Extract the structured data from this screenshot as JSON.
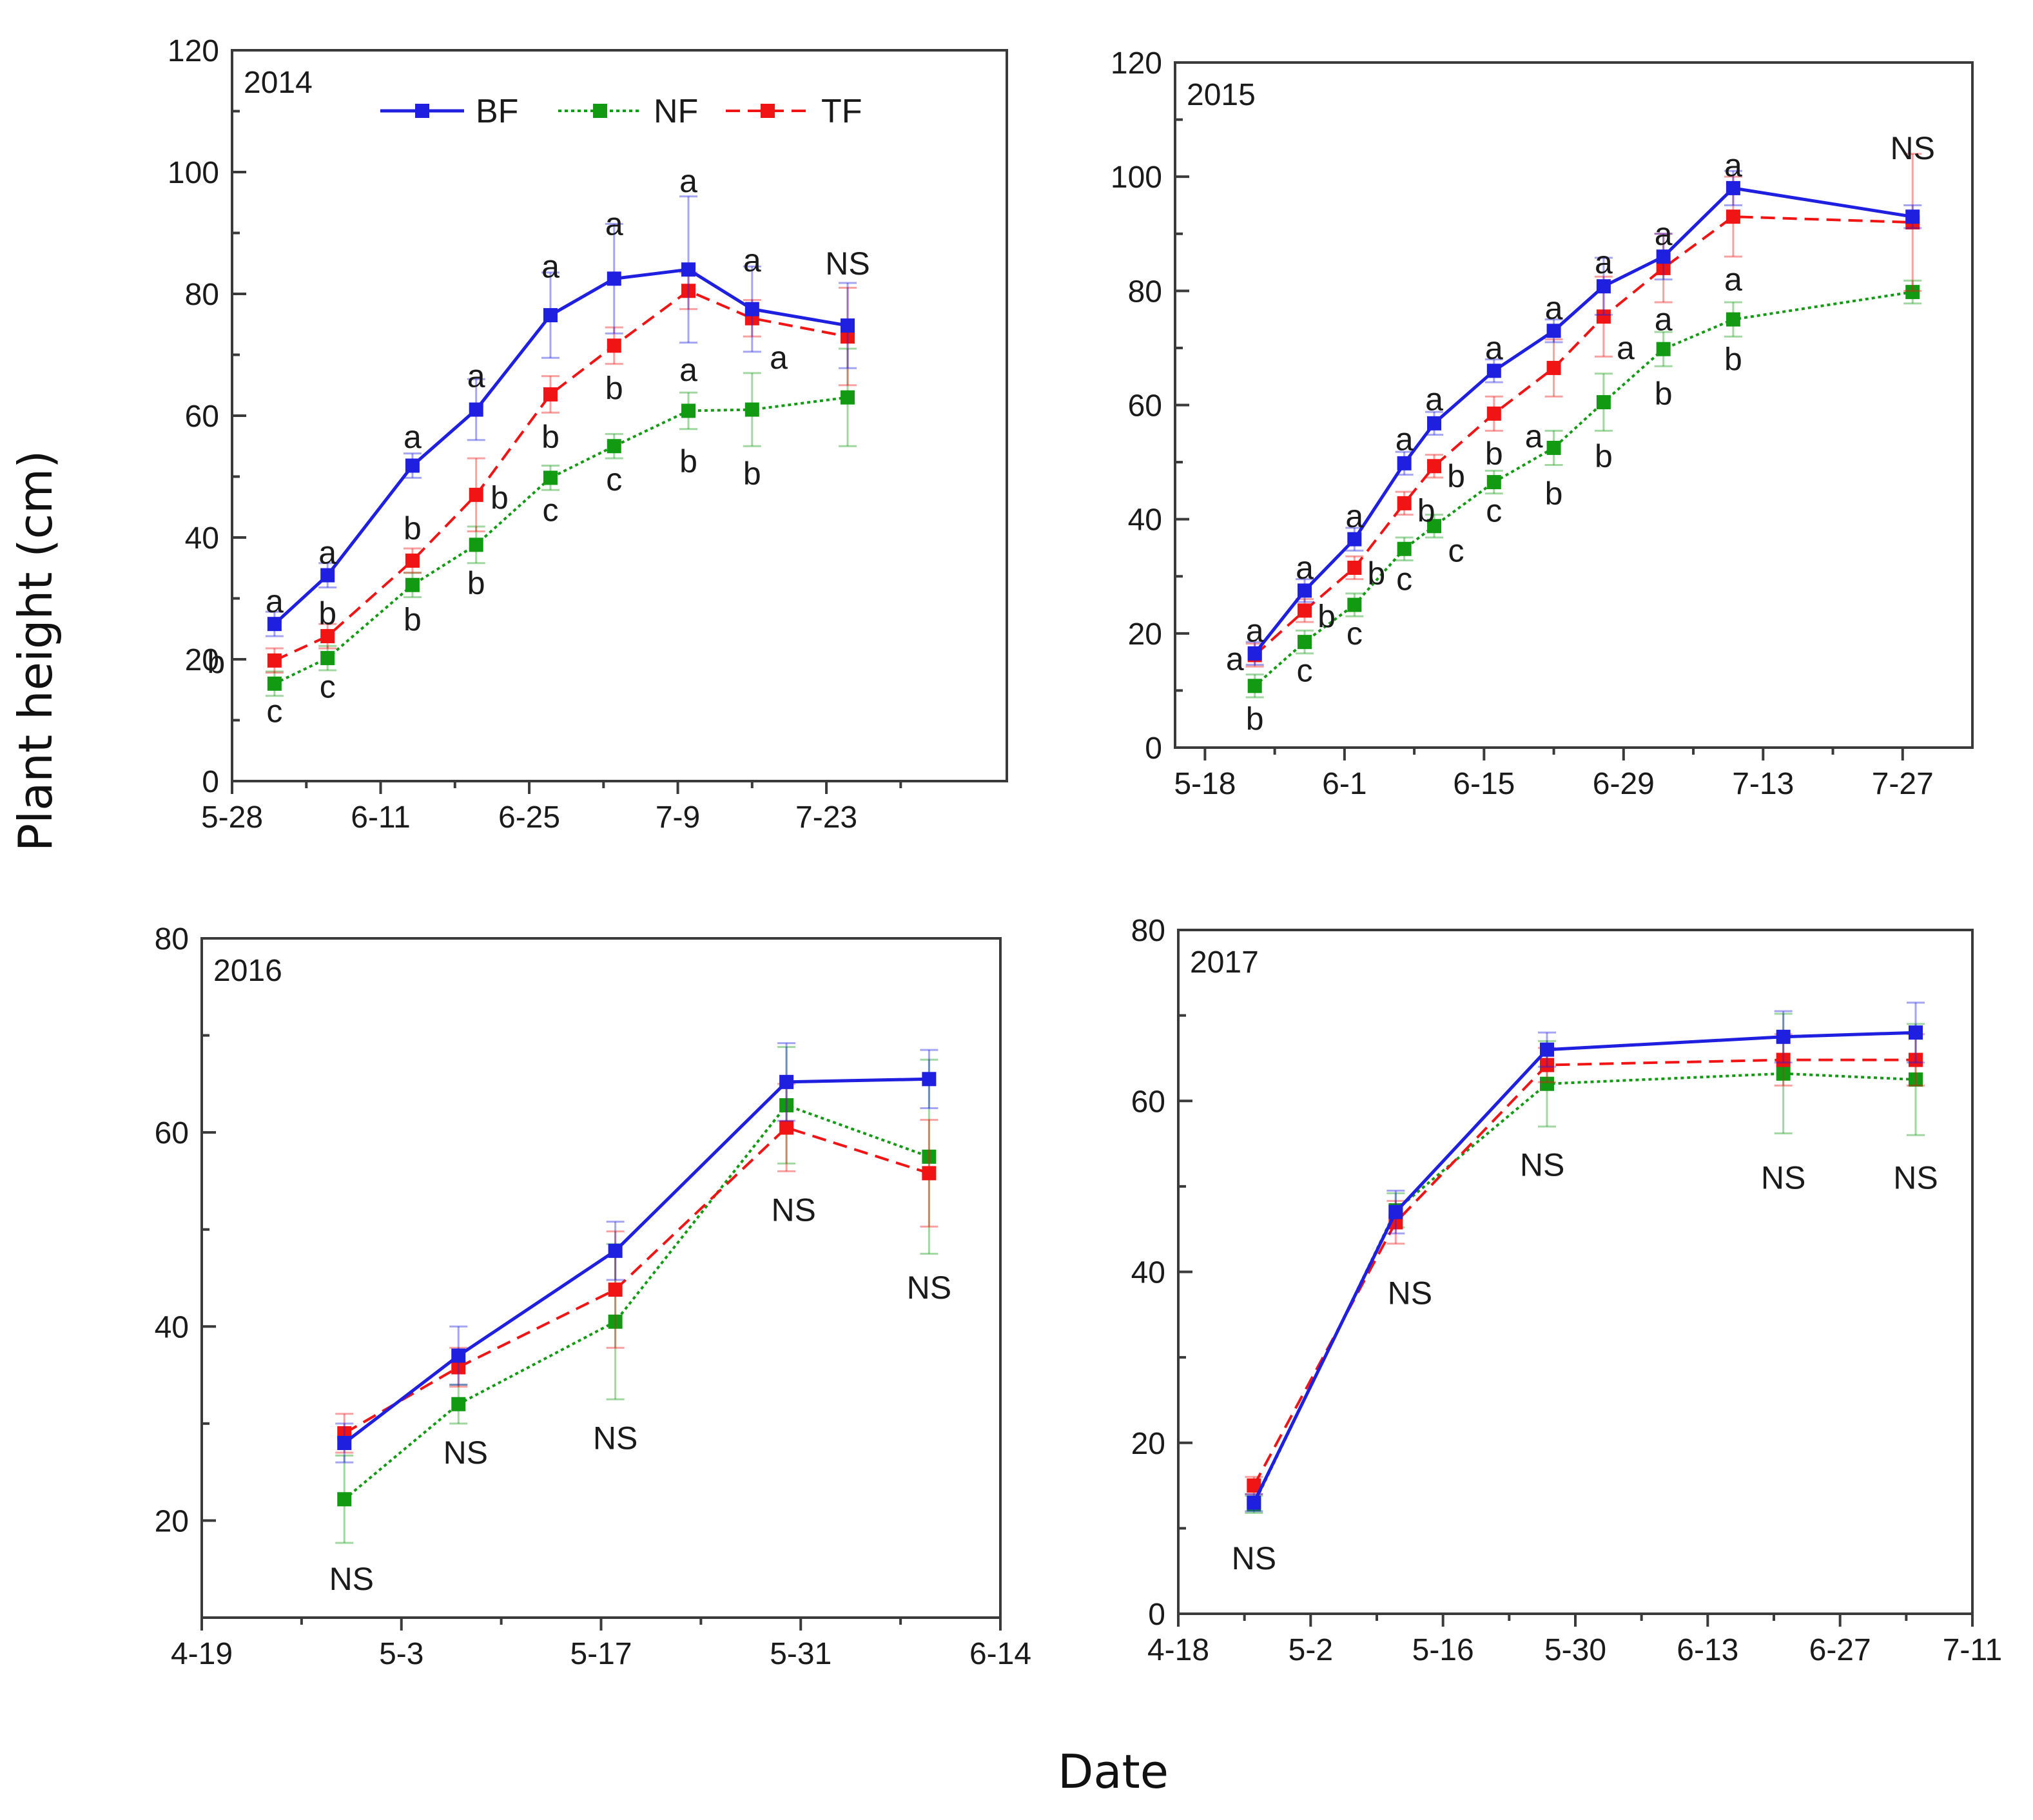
{
  "figure": {
    "ylabel": "Plant height (cm)",
    "xlabel": "Date"
  },
  "legend": [
    {
      "name": "BF",
      "color": "#1f1fe0",
      "dash": "solid"
    },
    {
      "name": "NF",
      "color": "#139a13",
      "dash": "dotted"
    },
    {
      "name": "TF",
      "color": "#f01414",
      "dash": "dashed"
    }
  ],
  "chart_data": [
    {
      "type": "line",
      "title": "2014",
      "xlim": [
        0,
        73
      ],
      "ylim": [
        0,
        120
      ],
      "xticks": [
        {
          "v": 0,
          "label": "5-28"
        },
        {
          "v": 14,
          "label": "6-11"
        },
        {
          "v": 28,
          "label": "6-25"
        },
        {
          "v": 42,
          "label": "7-9"
        },
        {
          "v": 56,
          "label": "7-23"
        }
      ],
      "yticks": [
        0,
        20,
        40,
        60,
        80,
        100,
        120
      ],
      "x": [
        4,
        9,
        17,
        23,
        30,
        36,
        43,
        49,
        58
      ],
      "series": [
        {
          "name": "BF",
          "values": [
            25.8,
            33.8,
            51.8,
            61.0,
            76.5,
            82.5,
            84.0,
            77.5,
            74.8
          ],
          "err": [
            2,
            2,
            2,
            5,
            7,
            9,
            12,
            7,
            7
          ]
        },
        {
          "name": "NF",
          "values": [
            16.0,
            20.2,
            32.2,
            38.8,
            49.8,
            55.0,
            60.8,
            61.0,
            63.0
          ],
          "err": [
            2,
            2,
            2,
            3,
            2,
            2,
            3,
            6,
            8
          ]
        },
        {
          "name": "TF",
          "values": [
            19.8,
            23.8,
            36.2,
            47.0,
            63.5,
            71.5,
            80.5,
            76.0,
            73.0
          ],
          "err": [
            2,
            2,
            2,
            6,
            3,
            3,
            3,
            3,
            8
          ]
        }
      ],
      "annotations": [
        {
          "x": 4,
          "y": 29.5,
          "text": "a"
        },
        {
          "x": -1.5,
          "y": 19.5,
          "text": "b"
        },
        {
          "x": 4,
          "y": 11.5,
          "text": "c"
        },
        {
          "x": 9,
          "y": 37.5,
          "text": "a"
        },
        {
          "x": 9,
          "y": 27.5,
          "text": "b"
        },
        {
          "x": 9,
          "y": 15.5,
          "text": "c"
        },
        {
          "x": 17,
          "y": 56.5,
          "text": "a"
        },
        {
          "x": 17,
          "y": 41.5,
          "text": "b"
        },
        {
          "x": 17,
          "y": 26.5,
          "text": "b"
        },
        {
          "x": 23,
          "y": 66.5,
          "text": "a"
        },
        {
          "x": 25.2,
          "y": 46.5,
          "text": "b"
        },
        {
          "x": 23,
          "y": 32.5,
          "text": "b"
        },
        {
          "x": 30,
          "y": 84.5,
          "text": "a"
        },
        {
          "x": 30,
          "y": 56.5,
          "text": "b"
        },
        {
          "x": 30,
          "y": 44.5,
          "text": "c"
        },
        {
          "x": 36,
          "y": 91.5,
          "text": "a"
        },
        {
          "x": 36,
          "y": 64.5,
          "text": "b"
        },
        {
          "x": 36,
          "y": 49.5,
          "text": "c"
        },
        {
          "x": 43,
          "y": 98.5,
          "text": "a"
        },
        {
          "x": 43,
          "y": 67.5,
          "text": "a"
        },
        {
          "x": 43,
          "y": 52.5,
          "text": "b"
        },
        {
          "x": 49,
          "y": 85.5,
          "text": "a"
        },
        {
          "x": 51.5,
          "y": 69.5,
          "text": "a"
        },
        {
          "x": 49,
          "y": 50.5,
          "text": "b"
        },
        {
          "x": 58,
          "y": 85.0,
          "text": "NS"
        }
      ]
    },
    {
      "type": "line",
      "title": "2015",
      "xlim": [
        -3,
        77
      ],
      "ylim": [
        0,
        120
      ],
      "xticks": [
        {
          "v": 0,
          "label": "5-18"
        },
        {
          "v": 14,
          "label": "6-1"
        },
        {
          "v": 28,
          "label": "6-15"
        },
        {
          "v": 42,
          "label": "6-29"
        },
        {
          "v": 56,
          "label": "7-13"
        },
        {
          "v": 70,
          "label": "7-27"
        }
      ],
      "yticks": [
        0,
        20,
        40,
        60,
        80,
        100,
        120
      ],
      "x": [
        5,
        10,
        15,
        20,
        23,
        29,
        35,
        40,
        46,
        53,
        71
      ],
      "series": [
        {
          "name": "BF",
          "values": [
            16.5,
            27.5,
            36.5,
            49.8,
            56.8,
            66.0,
            73.0,
            80.8,
            86.0,
            98.0,
            93.0
          ],
          "err": [
            2,
            2,
            2,
            2,
            2,
            2,
            2,
            5,
            4,
            3,
            2
          ]
        },
        {
          "name": "NF",
          "values": [
            10.8,
            18.5,
            25.0,
            34.8,
            38.8,
            46.5,
            52.5,
            60.5,
            69.8,
            75.0,
            79.8
          ],
          "err": [
            2,
            2,
            2,
            2,
            2,
            2,
            3,
            5,
            3,
            3,
            2
          ]
        },
        {
          "name": "TF",
          "values": [
            16.2,
            24.0,
            31.5,
            42.8,
            49.3,
            58.5,
            66.5,
            75.5,
            84.0,
            93.0,
            92.0
          ],
          "err": [
            2,
            2,
            2,
            2,
            2,
            3,
            5,
            7,
            6,
            7,
            12
          ]
        }
      ],
      "annotations": [
        {
          "x": 3,
          "y": 15.5,
          "text": "a"
        },
        {
          "x": 5,
          "y": 20.5,
          "text": "a"
        },
        {
          "x": 5,
          "y": 5.0,
          "text": "b"
        },
        {
          "x": 10,
          "y": 31.5,
          "text": "a"
        },
        {
          "x": 12.2,
          "y": 23.0,
          "text": "b"
        },
        {
          "x": 10,
          "y": 13.5,
          "text": "c"
        },
        {
          "x": 15,
          "y": 40.5,
          "text": "a"
        },
        {
          "x": 17.2,
          "y": 30.5,
          "text": "b"
        },
        {
          "x": 15,
          "y": 20.0,
          "text": "c"
        },
        {
          "x": 20,
          "y": 54.0,
          "text": "a"
        },
        {
          "x": 22.2,
          "y": 41.5,
          "text": "b"
        },
        {
          "x": 20,
          "y": 29.5,
          "text": "c"
        },
        {
          "x": 23,
          "y": 61.0,
          "text": "a"
        },
        {
          "x": 25.2,
          "y": 47.5,
          "text": "b"
        },
        {
          "x": 25.2,
          "y": 34.5,
          "text": "c"
        },
        {
          "x": 29,
          "y": 70.0,
          "text": "a"
        },
        {
          "x": 29,
          "y": 51.5,
          "text": "b"
        },
        {
          "x": 29,
          "y": 41.5,
          "text": "c"
        },
        {
          "x": 33,
          "y": 54.5,
          "text": "a"
        },
        {
          "x": 35,
          "y": 77.0,
          "text": "a"
        },
        {
          "x": 35,
          "y": 44.5,
          "text": "b"
        },
        {
          "x": 40,
          "y": 85.0,
          "text": "a"
        },
        {
          "x": 42.2,
          "y": 70.0,
          "text": "a"
        },
        {
          "x": 40,
          "y": 51.0,
          "text": "b"
        },
        {
          "x": 46,
          "y": 90.0,
          "text": "a"
        },
        {
          "x": 46,
          "y": 75.0,
          "text": "a"
        },
        {
          "x": 46,
          "y": 62.0,
          "text": "b"
        },
        {
          "x": 53,
          "y": 102.0,
          "text": "a"
        },
        {
          "x": 53,
          "y": 82.0,
          "text": "a"
        },
        {
          "x": 53,
          "y": 68.0,
          "text": "b"
        },
        {
          "x": 71,
          "y": 105.0,
          "text": "NS"
        }
      ]
    },
    {
      "type": "line",
      "title": "2016",
      "xlim": [
        0,
        56
      ],
      "ylim": [
        10,
        80
      ],
      "xticks": [
        {
          "v": 0,
          "label": "4-19"
        },
        {
          "v": 14,
          "label": "5-3"
        },
        {
          "v": 28,
          "label": "5-17"
        },
        {
          "v": 42,
          "label": "5-31"
        },
        {
          "v": 56,
          "label": "6-14"
        }
      ],
      "yticks": [
        20,
        40,
        60,
        80
      ],
      "x": [
        10,
        18,
        29,
        41,
        51
      ],
      "series": [
        {
          "name": "BF",
          "values": [
            28.0,
            37.0,
            47.8,
            65.2,
            65.5
          ],
          "err": [
            2,
            3,
            3,
            4,
            3
          ]
        },
        {
          "name": "NF",
          "values": [
            22.2,
            32.0,
            40.5,
            62.8,
            57.5
          ],
          "err": [
            4.5,
            2,
            8,
            6,
            10
          ]
        },
        {
          "name": "TF",
          "values": [
            29.0,
            35.8,
            43.8,
            60.5,
            55.8
          ],
          "err": [
            2,
            2,
            6,
            4.5,
            5.5
          ]
        }
      ],
      "annotations": [
        {
          "x": 10.5,
          "y": 14.0,
          "text": "NS"
        },
        {
          "x": 18.5,
          "y": 27.0,
          "text": "NS"
        },
        {
          "x": 29,
          "y": 28.5,
          "text": "NS"
        },
        {
          "x": 41.5,
          "y": 52.0,
          "text": "NS"
        },
        {
          "x": 51,
          "y": 44.0,
          "text": "NS"
        }
      ]
    },
    {
      "type": "line",
      "title": "2017",
      "xlim": [
        0,
        84
      ],
      "ylim": [
        0,
        80
      ],
      "xticks": [
        {
          "v": 0,
          "label": "4-18"
        },
        {
          "v": 14,
          "label": "5-2"
        },
        {
          "v": 28,
          "label": "5-16"
        },
        {
          "v": 42,
          "label": "5-30"
        },
        {
          "v": 56,
          "label": "6-13"
        },
        {
          "v": 70,
          "label": "6-27"
        },
        {
          "v": 84,
          "label": "7-11"
        }
      ],
      "yticks": [
        0,
        20,
        40,
        60,
        80
      ],
      "x": [
        8,
        23,
        39,
        64,
        78
      ],
      "series": [
        {
          "name": "BF",
          "values": [
            13.0,
            47.0,
            66.0,
            67.5,
            68.0
          ],
          "err": [
            1,
            2.5,
            2,
            3,
            3.5
          ]
        },
        {
          "name": "NF",
          "values": [
            12.8,
            47.2,
            62.0,
            63.2,
            62.5
          ],
          "err": [
            1,
            2,
            5,
            7,
            6.5
          ]
        },
        {
          "name": "TF",
          "values": [
            15.0,
            45.8,
            64.2,
            64.8,
            64.8
          ],
          "err": [
            1,
            2.5,
            2,
            3,
            3
          ]
        }
      ],
      "annotations": [
        {
          "x": 8,
          "y": 6.5,
          "text": "NS"
        },
        {
          "x": 24.5,
          "y": 37.5,
          "text": "NS"
        },
        {
          "x": 38.5,
          "y": 52.5,
          "text": "NS"
        },
        {
          "x": 64,
          "y": 51.0,
          "text": "NS"
        },
        {
          "x": 78,
          "y": 51.0,
          "text": "NS"
        }
      ]
    }
  ]
}
